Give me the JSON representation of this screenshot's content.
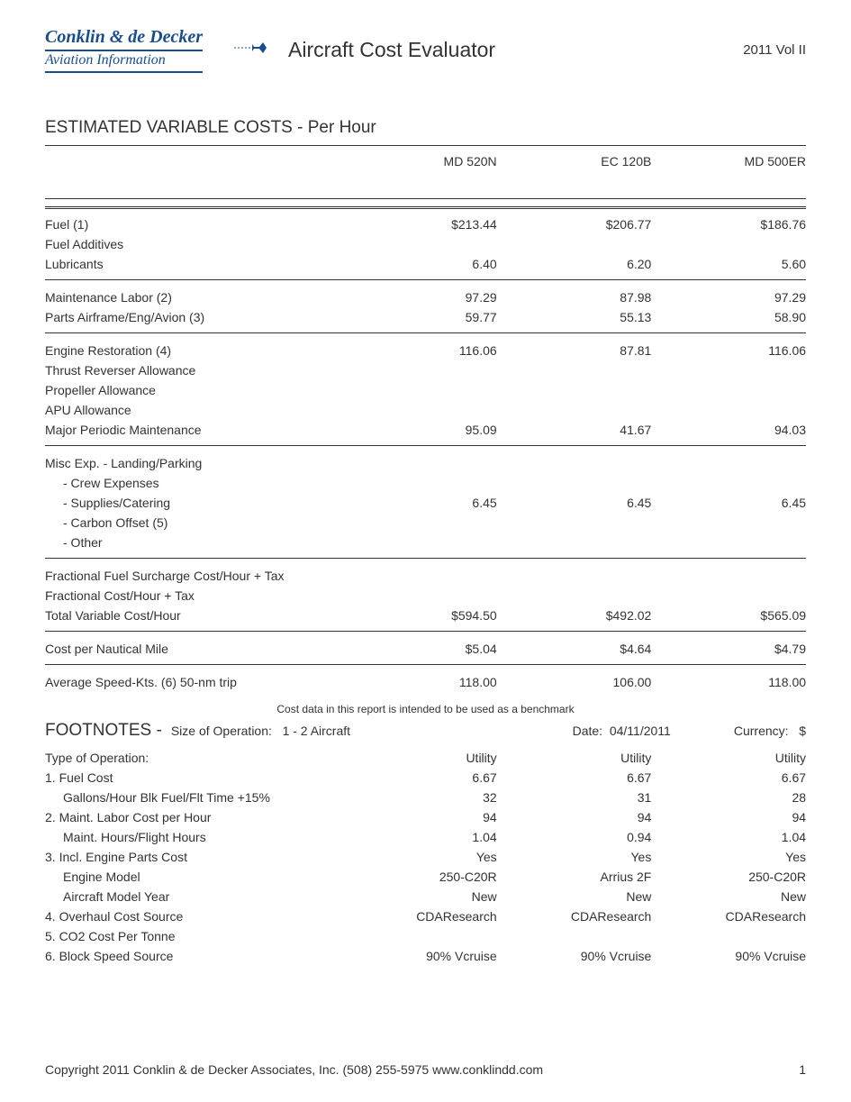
{
  "header": {
    "company": "Conklin & de Decker",
    "tagline": "Aviation Information",
    "title": "Aircraft Cost Evaluator",
    "volume": "2011 Vol II"
  },
  "section_title": "ESTIMATED VARIABLE COSTS - Per Hour",
  "columns": [
    "MD 520N",
    "EC 120B",
    "MD 500ER"
  ],
  "groups": [
    {
      "rows": [
        {
          "label": "Fuel (1)",
          "v": [
            "$213.44",
            "$206.77",
            "$186.76"
          ]
        },
        {
          "label": "Fuel Additives",
          "v": [
            "",
            "",
            ""
          ]
        },
        {
          "label": "Lubricants",
          "v": [
            "6.40",
            "6.20",
            "5.60"
          ]
        }
      ]
    },
    {
      "rows": [
        {
          "label": "Maintenance Labor (2)",
          "v": [
            "97.29",
            "87.98",
            "97.29"
          ]
        },
        {
          "label": "Parts Airframe/Eng/Avion (3)",
          "v": [
            "59.77",
            "55.13",
            "58.90"
          ]
        }
      ]
    },
    {
      "rows": [
        {
          "label": "Engine Restoration (4)",
          "v": [
            "116.06",
            "87.81",
            "116.06"
          ]
        },
        {
          "label": "Thrust Reverser Allowance",
          "v": [
            "",
            "",
            ""
          ]
        },
        {
          "label": "Propeller Allowance",
          "v": [
            "",
            "",
            ""
          ]
        },
        {
          "label": "APU Allowance",
          "v": [
            "",
            "",
            ""
          ]
        },
        {
          "label": "Major Periodic Maintenance",
          "v": [
            "95.09",
            "41.67",
            "94.03"
          ]
        }
      ]
    },
    {
      "rows": [
        {
          "label": "Misc Exp. - Landing/Parking",
          "v": [
            "",
            "",
            ""
          ]
        },
        {
          "label": "- Crew Expenses",
          "indent": true,
          "v": [
            "",
            "",
            ""
          ]
        },
        {
          "label": "- Supplies/Catering",
          "indent": true,
          "v": [
            "6.45",
            "6.45",
            "6.45"
          ]
        },
        {
          "label": "- Carbon Offset (5)",
          "indent": true,
          "v": [
            "",
            "",
            ""
          ]
        },
        {
          "label": "- Other",
          "indent": true,
          "v": [
            "",
            "",
            ""
          ]
        }
      ]
    },
    {
      "rows": [
        {
          "label": "Fractional Fuel Surcharge Cost/Hour + Tax",
          "v": [
            "",
            "",
            ""
          ]
        },
        {
          "label": "Fractional Cost/Hour + Tax",
          "v": [
            "",
            "",
            ""
          ]
        },
        {
          "label": "Total Variable Cost/Hour",
          "v": [
            "$594.50",
            "$492.02",
            "$565.09"
          ]
        }
      ]
    },
    {
      "rows": [
        {
          "label": "Cost per Nautical Mile",
          "v": [
            "$5.04",
            "$4.64",
            "$4.79"
          ]
        }
      ]
    },
    {
      "rows": [
        {
          "label": "Average Speed-Kts. (6) 50-nm trip",
          "v": [
            "118.00",
            "106.00",
            "118.00"
          ]
        }
      ]
    }
  ],
  "benchmark_note": "Cost data in this report is intended to be used as a benchmark",
  "footnotes": {
    "title": "FOOTNOTES -",
    "size_label": "Size of Operation:",
    "size_value": "1 - 2 Aircraft",
    "date_label": "Date:",
    "date_value": "04/11/2011",
    "currency_label": "Currency:",
    "currency_value": "$",
    "rows": [
      {
        "label": "Type of Operation:",
        "v": [
          "Utility",
          "Utility",
          "Utility"
        ]
      },
      {
        "label": "1. Fuel Cost",
        "v": [
          "6.67",
          "6.67",
          "6.67"
        ]
      },
      {
        "label": "Gallons/Hour Blk Fuel/Flt Time +15%",
        "indent": true,
        "v": [
          "32",
          "31",
          "28"
        ]
      },
      {
        "label": "2. Maint. Labor Cost per Hour",
        "v": [
          "94",
          "94",
          "94"
        ]
      },
      {
        "label": "Maint. Hours/Flight Hours",
        "indent": true,
        "v": [
          "1.04",
          "0.94",
          "1.04"
        ]
      },
      {
        "label": "3. Incl. Engine Parts Cost",
        "v": [
          "Yes",
          "Yes",
          "Yes"
        ]
      },
      {
        "label": "Engine Model",
        "indent": true,
        "v": [
          "250-C20R",
          "Arrius 2F",
          "250-C20R"
        ]
      },
      {
        "label": "Aircraft Model Year",
        "indent": true,
        "v": [
          "New",
          "New",
          "New"
        ]
      },
      {
        "label": "4. Overhaul Cost Source",
        "v": [
          "CDAResearch",
          "CDAResearch",
          "CDAResearch"
        ]
      },
      {
        "label": "5. CO2 Cost Per Tonne",
        "v": [
          "",
          "",
          ""
        ]
      },
      {
        "label": "6. Block Speed Source",
        "v": [
          "90% Vcruise",
          "90% Vcruise",
          "90% Vcruise"
        ]
      }
    ]
  },
  "footer": {
    "copyright": "Copyright 2011 Conklin & de Decker Associates, Inc. (508) 255-5975 www.conklindd.com",
    "page": "1"
  },
  "colors": {
    "brand_blue": "#1a4d8f",
    "text": "#333333",
    "background": "#ffffff"
  }
}
